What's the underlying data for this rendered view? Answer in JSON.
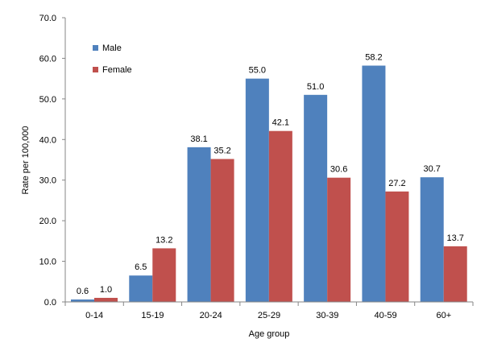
{
  "chart_data": {
    "type": "bar",
    "title": "",
    "xlabel": "Age group",
    "ylabel": "Rate per 100,000",
    "categories": [
      "0-14",
      "15-19",
      "20-24",
      "25-29",
      "30-39",
      "40-59",
      "60+"
    ],
    "series": [
      {
        "name": "Male",
        "color": "#4F81BD",
        "values": [
          0.6,
          6.5,
          38.1,
          55.0,
          51.0,
          58.2,
          30.7
        ]
      },
      {
        "name": "Female",
        "color": "#C0504D",
        "values": [
          1.0,
          13.2,
          35.2,
          42.1,
          30.6,
          27.2,
          13.7
        ]
      }
    ],
    "ylim": [
      0,
      70
    ],
    "yticks": [
      "0.0",
      "10.0",
      "20.0",
      "30.0",
      "40.0",
      "50.0",
      "60.0",
      "70.0"
    ],
    "grid": false,
    "legend_position": "top-left"
  }
}
